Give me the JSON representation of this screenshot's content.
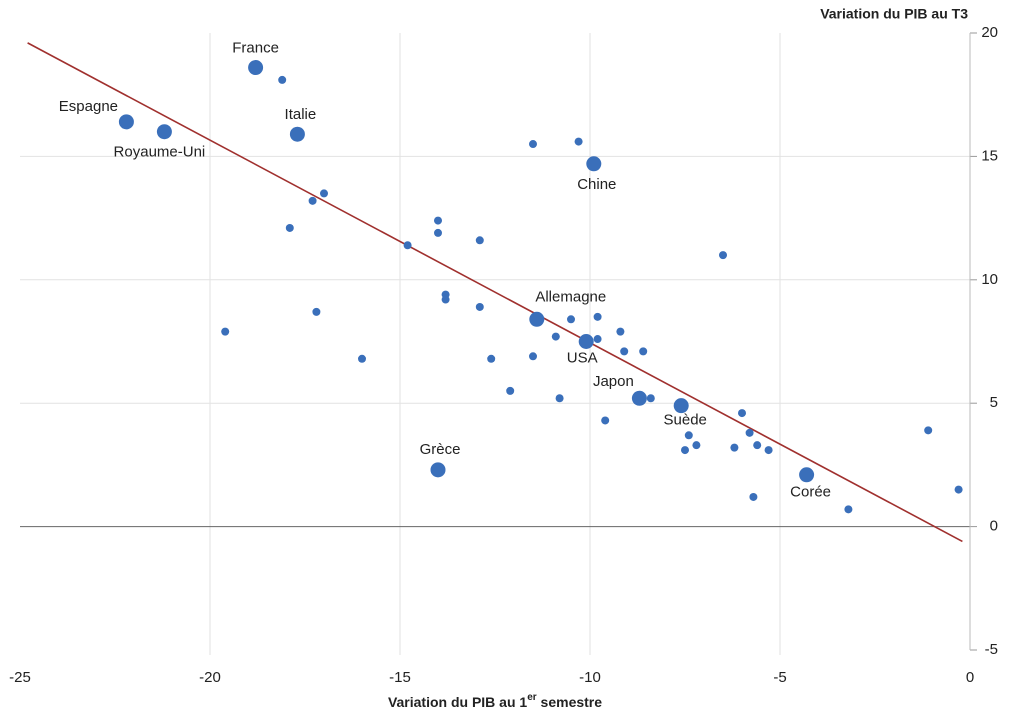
{
  "chart_data": {
    "type": "scatter",
    "title": "Variation du PIB au T3",
    "xlabel": [
      "Variation du PIB au 1",
      "er",
      " semestre"
    ],
    "xlim": [
      -25,
      0
    ],
    "xticks": [
      -25,
      -20,
      -15,
      -10,
      -5,
      0
    ],
    "ylim": [
      -5,
      20
    ],
    "yticks": [
      -5,
      0,
      5,
      10,
      15,
      20
    ],
    "grid": true,
    "point_color": "#3a6fba",
    "labeled_points": {
      "labels": [
        "France",
        "Espagne",
        "Royaume-Uni",
        "Italie",
        "Chine",
        "Allemagne",
        "USA",
        "Japon",
        "Suède",
        "Grèce",
        "Corée"
      ],
      "x": [
        -18.8,
        -22.2,
        -21.2,
        -17.7,
        -9.9,
        -11.4,
        -10.1,
        -8.7,
        -7.6,
        -14.0,
        -4.3
      ],
      "y": [
        18.6,
        16.4,
        16.0,
        15.9,
        14.7,
        8.4,
        7.5,
        5.2,
        4.9,
        2.3,
        2.1
      ]
    },
    "other_points": {
      "x": [
        -18.1,
        -11.5,
        -10.3,
        -17.0,
        -17.3,
        -14.0,
        -17.9,
        -14.0,
        -12.9,
        -14.8,
        -6.5,
        -13.8,
        -13.8,
        -17.2,
        -12.9,
        -10.5,
        -9.8,
        -19.6,
        -9.2,
        -10.9,
        -9.8,
        -16.0,
        -11.5,
        -12.6,
        -9.1,
        -8.6,
        -12.1,
        -10.8,
        -8.4,
        -6.0,
        -9.6,
        -7.4,
        -5.8,
        -1.1,
        -5.6,
        -7.2,
        -6.2,
        -5.3,
        -7.5,
        -5.7,
        -3.2,
        -0.3
      ],
      "y": [
        18.1,
        15.5,
        15.6,
        13.5,
        13.2,
        12.4,
        12.1,
        11.9,
        11.6,
        11.4,
        11.0,
        9.4,
        9.2,
        8.7,
        8.9,
        8.4,
        8.5,
        7.9,
        7.9,
        7.7,
        7.6,
        6.8,
        6.9,
        6.8,
        7.1,
        7.1,
        5.5,
        5.2,
        5.2,
        4.6,
        4.3,
        3.7,
        3.8,
        3.9,
        3.3,
        3.3,
        3.2,
        3.1,
        3.1,
        1.2,
        0.7,
        1.5
      ]
    },
    "trendline": {
      "x": [
        -24.8,
        -0.2
      ],
      "y": [
        19.6,
        -0.6
      ],
      "color": "#a0302e"
    }
  }
}
